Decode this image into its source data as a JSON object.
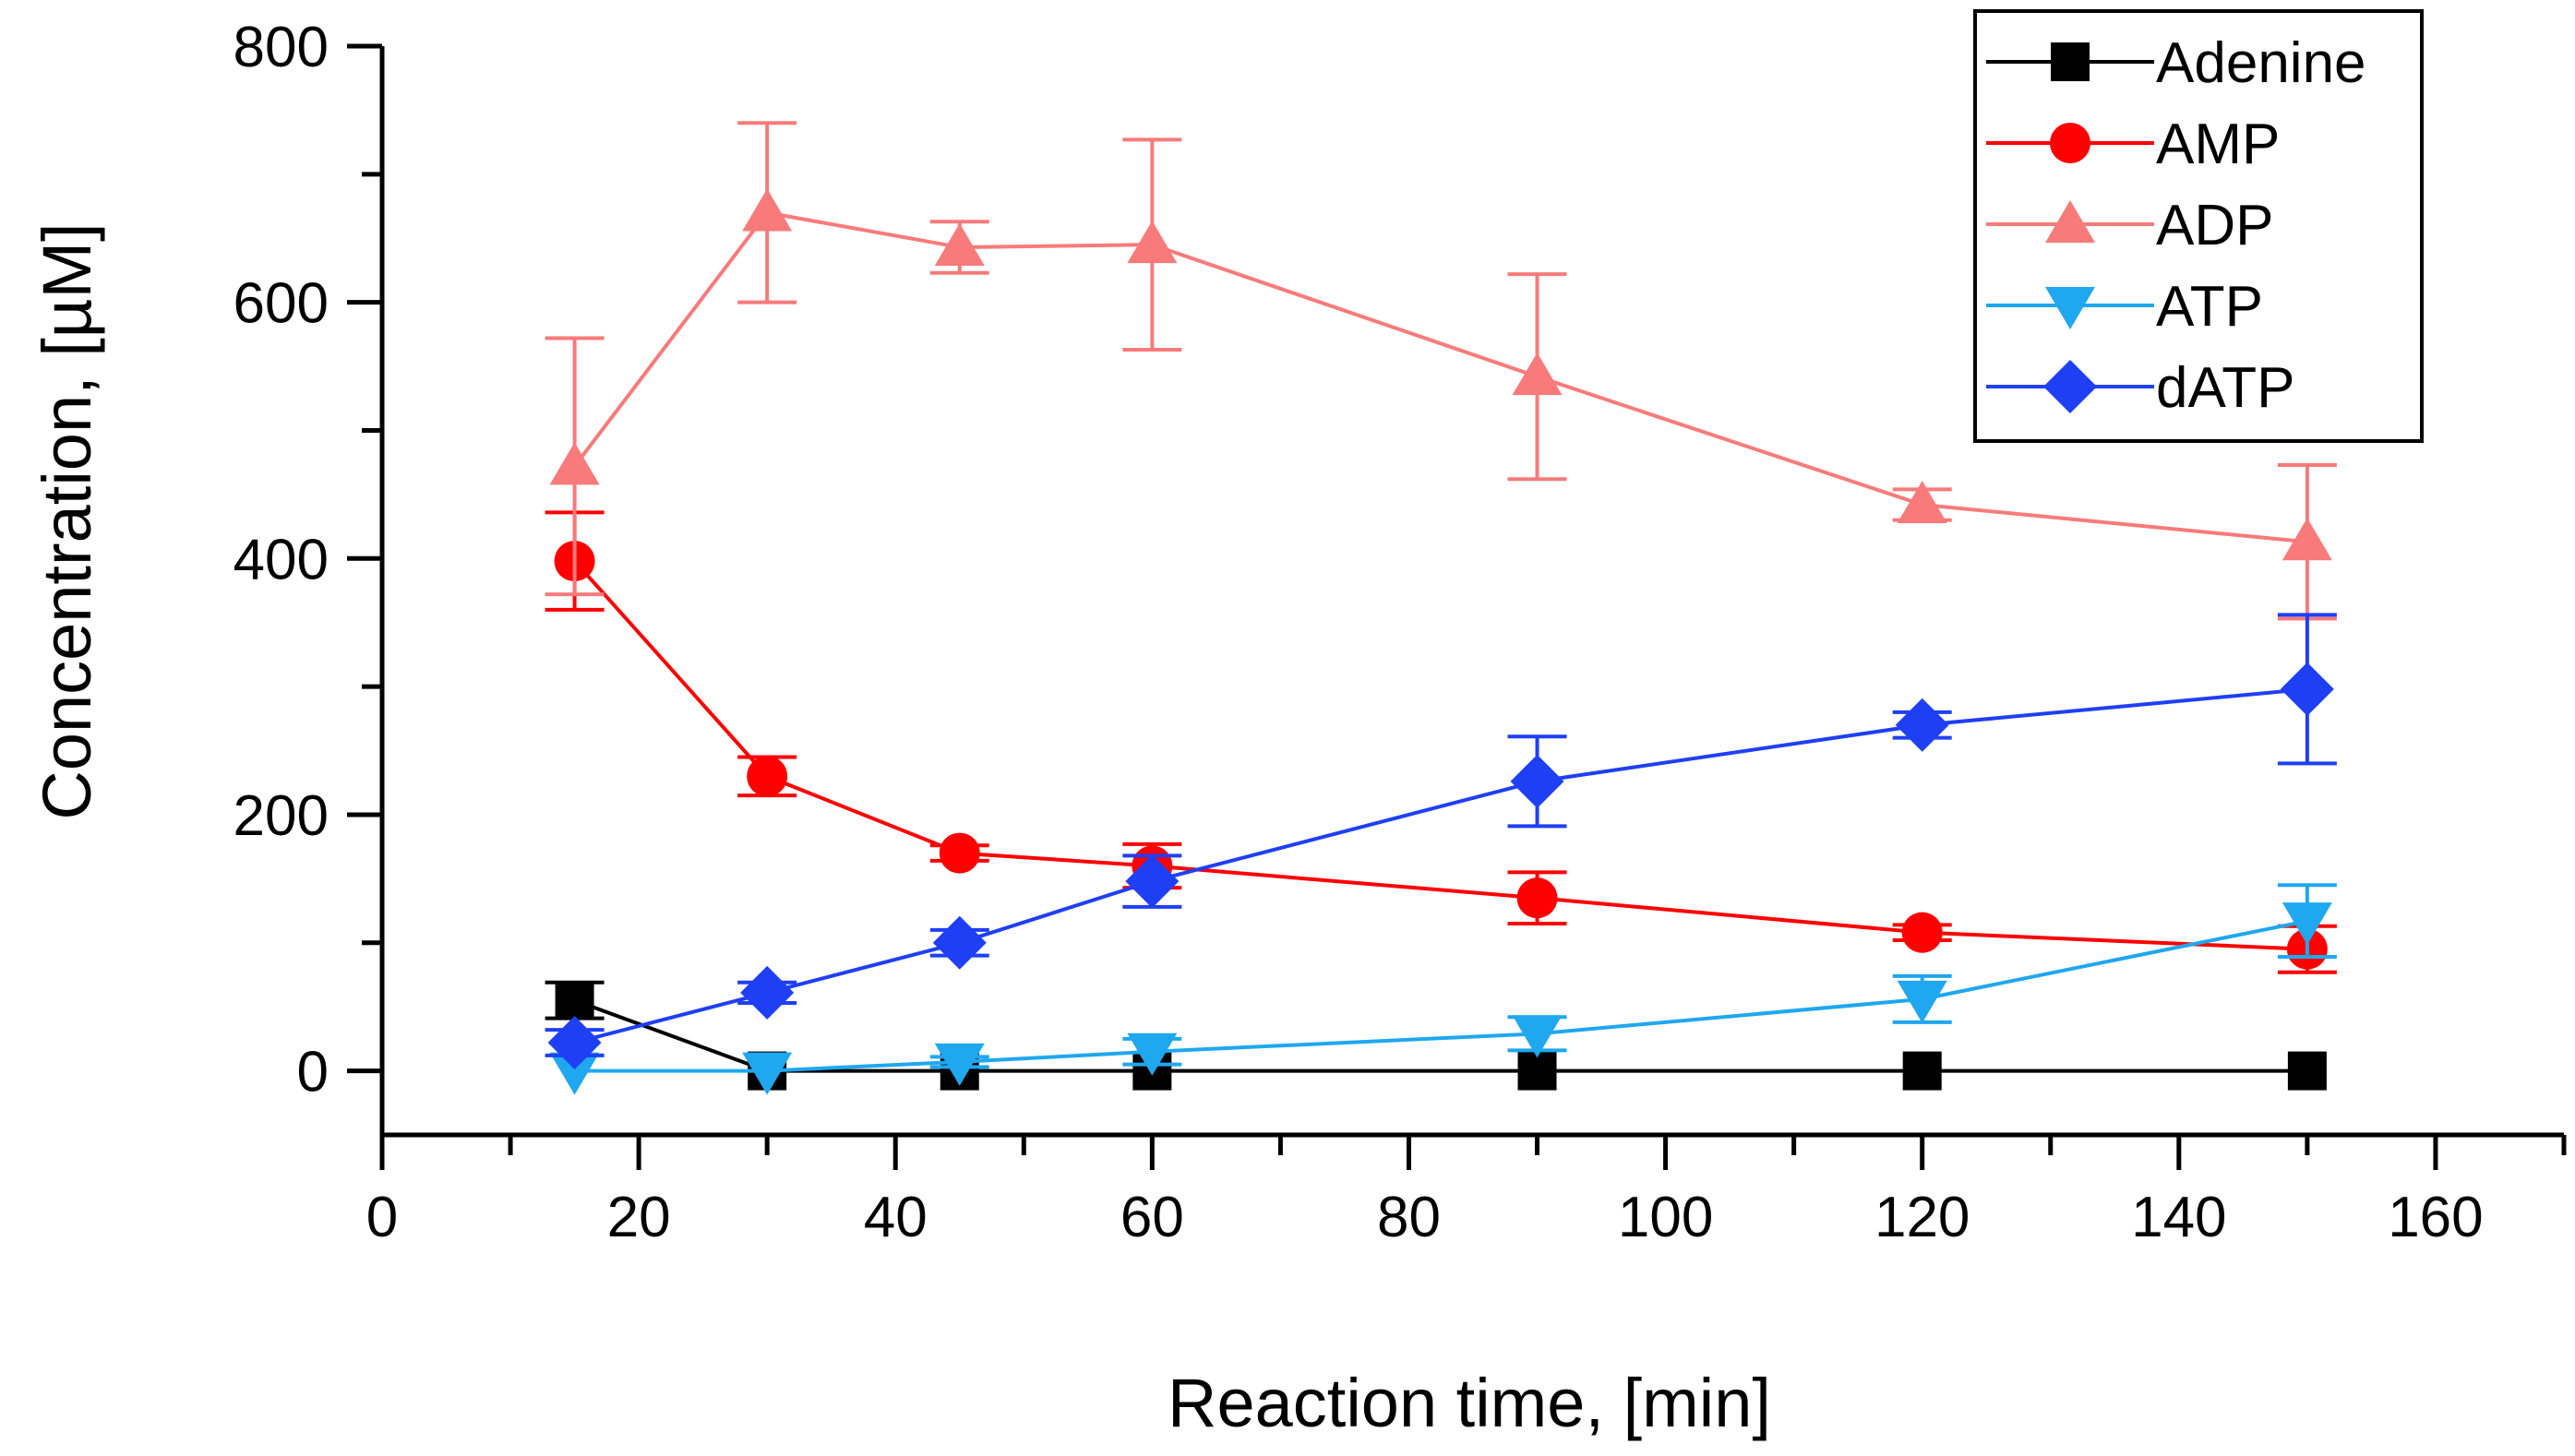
{
  "chart_data": {
    "type": "line",
    "title": "",
    "xlabel": "Reaction time, [min]",
    "ylabel": "Concentration, [µM]",
    "xlim": [
      0,
      170
    ],
    "ylim": [
      -50,
      800
    ],
    "xticks": [
      0,
      20,
      40,
      60,
      80,
      100,
      120,
      140,
      160
    ],
    "yticks": [
      0,
      200,
      400,
      600,
      800
    ],
    "x_minor_step": 10,
    "y_minor_step": 100,
    "legend_position": "top-right",
    "series": [
      {
        "name": "Adenine",
        "color": "#000000",
        "marker": "square",
        "x": [
          15,
          30,
          45,
          60,
          90,
          120,
          150
        ],
        "y": [
          55,
          0,
          0,
          0,
          0,
          0,
          0
        ],
        "err": [
          14,
          0,
          0,
          0,
          0,
          0,
          0
        ]
      },
      {
        "name": "AMP",
        "color": "#ff0000",
        "marker": "circle",
        "x": [
          15,
          30,
          45,
          60,
          90,
          120,
          150
        ],
        "y": [
          398,
          230,
          170,
          160,
          135,
          108,
          95
        ],
        "err": [
          38,
          15,
          6,
          17,
          20,
          6,
          18
        ]
      },
      {
        "name": "ADP",
        "color": "#f87a7a",
        "marker": "triangle-up",
        "x": [
          15,
          30,
          45,
          60,
          90,
          120,
          150
        ],
        "y": [
          472,
          670,
          643,
          645,
          542,
          442,
          413
        ],
        "err": [
          100,
          70,
          20,
          82,
          80,
          12,
          60
        ]
      },
      {
        "name": "ATP",
        "color": "#1fa7ef",
        "marker": "triangle-down",
        "x": [
          15,
          30,
          45,
          60,
          90,
          120,
          150
        ],
        "y": [
          0,
          0,
          7,
          15,
          29,
          56,
          117
        ],
        "err": [
          0,
          0,
          4,
          10,
          13,
          18,
          28
        ]
      },
      {
        "name": "dATP",
        "color": "#1f3ff5",
        "marker": "diamond",
        "x": [
          15,
          30,
          45,
          60,
          90,
          120,
          150
        ],
        "y": [
          22,
          61,
          100,
          148,
          226,
          270,
          298
        ],
        "err": [
          10,
          8,
          10,
          20,
          35,
          10,
          58
        ]
      }
    ]
  }
}
